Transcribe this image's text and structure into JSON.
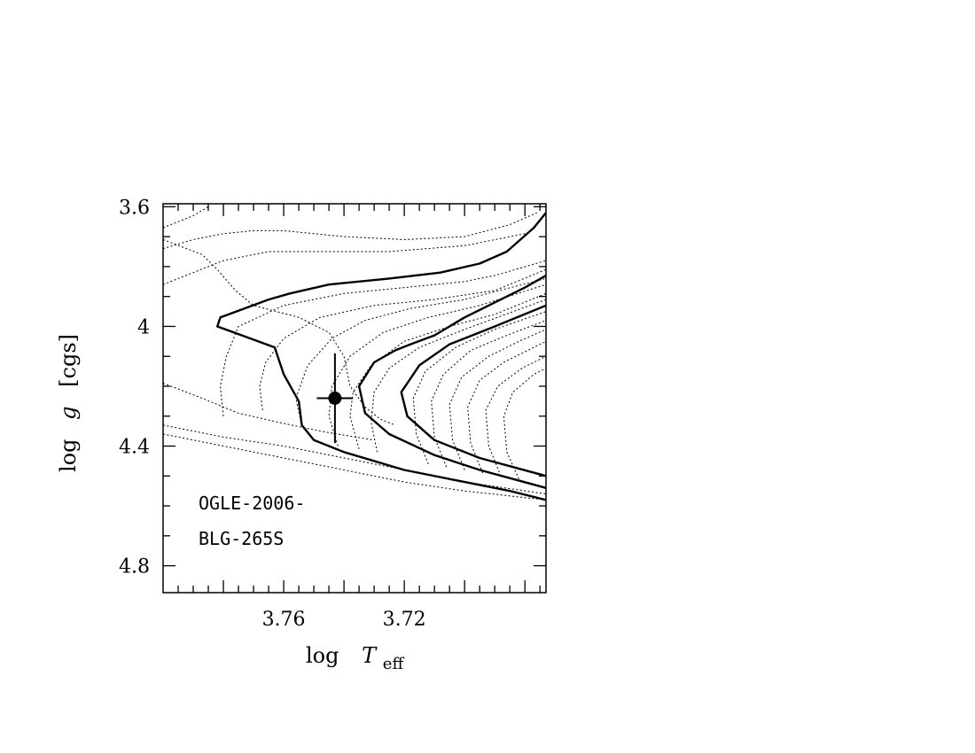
{
  "chart_data": {
    "type": "line",
    "title": "",
    "xlabel": {
      "prefix": "log",
      "var": "T",
      "sub": "eff"
    },
    "ylabel": {
      "prefix": "log",
      "var": "g",
      "suffix": "[cgs]"
    },
    "xlim": [
      3.8,
      3.673
    ],
    "ylim": [
      3.59,
      4.89
    ],
    "x_reversed": true,
    "y_reversed": true,
    "grid": false,
    "x_ticks": [
      {
        "value": 3.76,
        "label": "3.76"
      },
      {
        "value": 3.72,
        "label": "3.72"
      }
    ],
    "y_ticks": [
      {
        "value": 3.6,
        "label": "3.6"
      },
      {
        "value": 4.0,
        "label": "4"
      },
      {
        "value": 4.4,
        "label": "4.4"
      },
      {
        "value": 4.8,
        "label": "4.8"
      }
    ],
    "annotation_lines": [
      "OGLE-2006-",
      "BLG-265S"
    ],
    "data_point": {
      "x": 3.743,
      "y": 4.24,
      "xerr": 0.006,
      "yerr": 0.15
    },
    "series": [
      {
        "style": "solid",
        "points": [
          [
            3.673,
            3.62
          ],
          [
            3.677,
            3.67
          ],
          [
            3.686,
            3.75
          ],
          [
            3.695,
            3.79
          ],
          [
            3.708,
            3.82
          ],
          [
            3.725,
            3.84
          ],
          [
            3.745,
            3.86
          ],
          [
            3.758,
            3.89
          ],
          [
            3.765,
            3.91
          ],
          [
            3.781,
            3.97
          ],
          [
            3.782,
            4.0
          ],
          [
            3.763,
            4.07
          ],
          [
            3.76,
            4.16
          ],
          [
            3.755,
            4.25
          ],
          [
            3.754,
            4.33
          ],
          [
            3.75,
            4.38
          ],
          [
            3.74,
            4.42
          ],
          [
            3.72,
            4.48
          ],
          [
            3.7,
            4.52
          ],
          [
            3.685,
            4.55
          ],
          [
            3.673,
            4.58
          ]
        ]
      },
      {
        "style": "solid",
        "points": [
          [
            3.673,
            3.83
          ],
          [
            3.68,
            3.87
          ],
          [
            3.69,
            3.92
          ],
          [
            3.7,
            3.97
          ],
          [
            3.71,
            4.03
          ],
          [
            3.718,
            4.06
          ],
          [
            3.723,
            4.08
          ],
          [
            3.73,
            4.12
          ],
          [
            3.735,
            4.2
          ],
          [
            3.733,
            4.29
          ],
          [
            3.725,
            4.36
          ],
          [
            3.71,
            4.43
          ],
          [
            3.695,
            4.48
          ],
          [
            3.673,
            4.54
          ]
        ]
      },
      {
        "style": "solid",
        "points": [
          [
            3.673,
            3.93
          ],
          [
            3.69,
            4.0
          ],
          [
            3.705,
            4.06
          ],
          [
            3.715,
            4.13
          ],
          [
            3.721,
            4.22
          ],
          [
            3.719,
            4.3
          ],
          [
            3.71,
            4.38
          ],
          [
            3.695,
            4.44
          ],
          [
            3.673,
            4.5
          ]
        ]
      },
      {
        "style": "dotted",
        "points": [
          [
            3.8,
            3.67
          ],
          [
            3.795,
            3.65
          ],
          [
            3.79,
            3.63
          ],
          [
            3.785,
            3.6
          ]
        ]
      },
      {
        "style": "dotted",
        "points": [
          [
            3.8,
            3.74
          ],
          [
            3.79,
            3.71
          ],
          [
            3.78,
            3.69
          ],
          [
            3.77,
            3.68
          ],
          [
            3.76,
            3.68
          ],
          [
            3.74,
            3.7
          ],
          [
            3.72,
            3.71
          ],
          [
            3.7,
            3.7
          ],
          [
            3.685,
            3.66
          ],
          [
            3.676,
            3.62
          ]
        ]
      },
      {
        "style": "dotted",
        "points": [
          [
            3.8,
            3.86
          ],
          [
            3.79,
            3.82
          ],
          [
            3.78,
            3.78
          ],
          [
            3.765,
            3.75
          ],
          [
            3.745,
            3.75
          ],
          [
            3.725,
            3.75
          ],
          [
            3.7,
            3.73
          ],
          [
            3.68,
            3.69
          ]
        ]
      },
      {
        "style": "dotted",
        "points": [
          [
            3.8,
            3.71
          ],
          [
            3.787,
            3.76
          ],
          [
            3.782,
            3.81
          ],
          [
            3.776,
            3.88
          ],
          [
            3.77,
            3.93
          ],
          [
            3.755,
            3.97
          ],
          [
            3.745,
            4.02
          ],
          [
            3.74,
            4.1
          ],
          [
            3.738,
            4.2
          ],
          [
            3.733,
            4.27
          ],
          [
            3.728,
            4.31
          ],
          [
            3.723,
            4.33
          ]
        ]
      },
      {
        "style": "dotted",
        "points": [
          [
            3.8,
            4.19
          ],
          [
            3.787,
            4.24
          ],
          [
            3.775,
            4.29
          ],
          [
            3.762,
            4.32
          ],
          [
            3.748,
            4.35
          ],
          [
            3.73,
            4.38
          ]
        ]
      },
      {
        "style": "dotted",
        "points": [
          [
            3.8,
            4.33
          ],
          [
            3.78,
            4.37
          ],
          [
            3.76,
            4.4
          ],
          [
            3.74,
            4.44
          ],
          [
            3.72,
            4.48
          ],
          [
            3.7,
            4.52
          ],
          [
            3.673,
            4.56
          ]
        ]
      },
      {
        "style": "dotted",
        "points": [
          [
            3.8,
            4.36
          ],
          [
            3.78,
            4.4
          ],
          [
            3.76,
            4.44
          ],
          [
            3.74,
            4.48
          ],
          [
            3.72,
            4.52
          ],
          [
            3.7,
            4.55
          ],
          [
            3.673,
            4.58
          ]
        ]
      },
      {
        "style": "dotted",
        "points": [
          [
            3.78,
            4.3
          ],
          [
            3.781,
            4.2
          ],
          [
            3.779,
            4.1
          ],
          [
            3.775,
            4.0
          ],
          [
            3.76,
            3.93
          ],
          [
            3.74,
            3.89
          ],
          [
            3.72,
            3.87
          ],
          [
            3.7,
            3.85
          ],
          [
            3.69,
            3.83
          ],
          [
            3.673,
            3.78
          ]
        ]
      },
      {
        "style": "dotted",
        "points": [
          [
            3.767,
            4.28
          ],
          [
            3.768,
            4.2
          ],
          [
            3.766,
            4.12
          ],
          [
            3.76,
            4.04
          ],
          [
            3.748,
            3.97
          ],
          [
            3.73,
            3.93
          ],
          [
            3.71,
            3.91
          ],
          [
            3.69,
            3.88
          ],
          [
            3.673,
            3.81
          ]
        ]
      },
      {
        "style": "dotted",
        "points": [
          [
            3.754,
            4.33
          ],
          [
            3.756,
            4.24
          ],
          [
            3.752,
            4.13
          ],
          [
            3.744,
            4.04
          ],
          [
            3.733,
            3.98
          ],
          [
            3.718,
            3.94
          ],
          [
            3.7,
            3.91
          ],
          [
            3.673,
            3.84
          ]
        ]
      },
      {
        "style": "dotted",
        "points": [
          [
            3.742,
            4.4
          ],
          [
            3.745,
            4.3
          ],
          [
            3.744,
            4.2
          ],
          [
            3.738,
            4.1
          ],
          [
            3.727,
            4.02
          ],
          [
            3.712,
            3.97
          ],
          [
            3.695,
            3.93
          ],
          [
            3.673,
            3.86
          ]
        ]
      },
      {
        "style": "dotted",
        "points": [
          [
            3.735,
            4.41
          ],
          [
            3.738,
            4.3
          ],
          [
            3.737,
            4.22
          ],
          [
            3.731,
            4.13
          ],
          [
            3.72,
            4.05
          ],
          [
            3.705,
            4.0
          ],
          [
            3.69,
            3.96
          ],
          [
            3.673,
            3.89
          ]
        ]
      },
      {
        "style": "dotted",
        "points": [
          [
            3.729,
            4.42
          ],
          [
            3.731,
            4.32
          ],
          [
            3.73,
            4.22
          ],
          [
            3.725,
            4.14
          ],
          [
            3.715,
            4.07
          ],
          [
            3.7,
            4.01
          ],
          [
            3.673,
            3.91
          ]
        ]
      },
      {
        "style": "dotted",
        "points": [
          [
            3.712,
            4.46
          ],
          [
            3.716,
            4.36
          ],
          [
            3.717,
            4.24
          ],
          [
            3.713,
            4.15
          ],
          [
            3.703,
            4.07
          ],
          [
            3.69,
            4.01
          ],
          [
            3.673,
            3.95
          ]
        ]
      },
      {
        "style": "dotted",
        "points": [
          [
            3.706,
            4.47
          ],
          [
            3.71,
            4.37
          ],
          [
            3.711,
            4.25
          ],
          [
            3.707,
            4.16
          ],
          [
            3.698,
            4.08
          ],
          [
            3.686,
            4.03
          ],
          [
            3.673,
            3.98
          ]
        ]
      },
      {
        "style": "dotted",
        "points": [
          [
            3.7,
            4.48
          ],
          [
            3.704,
            4.38
          ],
          [
            3.705,
            4.26
          ],
          [
            3.701,
            4.17
          ],
          [
            3.692,
            4.1
          ],
          [
            3.682,
            4.05
          ],
          [
            3.673,
            4.01
          ]
        ]
      },
      {
        "style": "dotted",
        "points": [
          [
            3.694,
            4.49
          ],
          [
            3.698,
            4.39
          ],
          [
            3.699,
            4.27
          ],
          [
            3.695,
            4.18
          ],
          [
            3.687,
            4.12
          ],
          [
            3.673,
            4.05
          ]
        ]
      },
      {
        "style": "dotted",
        "points": [
          [
            3.688,
            4.5
          ],
          [
            3.692,
            4.4
          ],
          [
            3.693,
            4.28
          ],
          [
            3.689,
            4.2
          ],
          [
            3.681,
            4.14
          ],
          [
            3.673,
            4.1
          ]
        ]
      },
      {
        "style": "dotted",
        "points": [
          [
            3.682,
            4.51
          ],
          [
            3.686,
            4.42
          ],
          [
            3.687,
            4.3
          ],
          [
            3.684,
            4.22
          ],
          [
            3.677,
            4.16
          ],
          [
            3.673,
            4.14
          ]
        ]
      }
    ]
  }
}
